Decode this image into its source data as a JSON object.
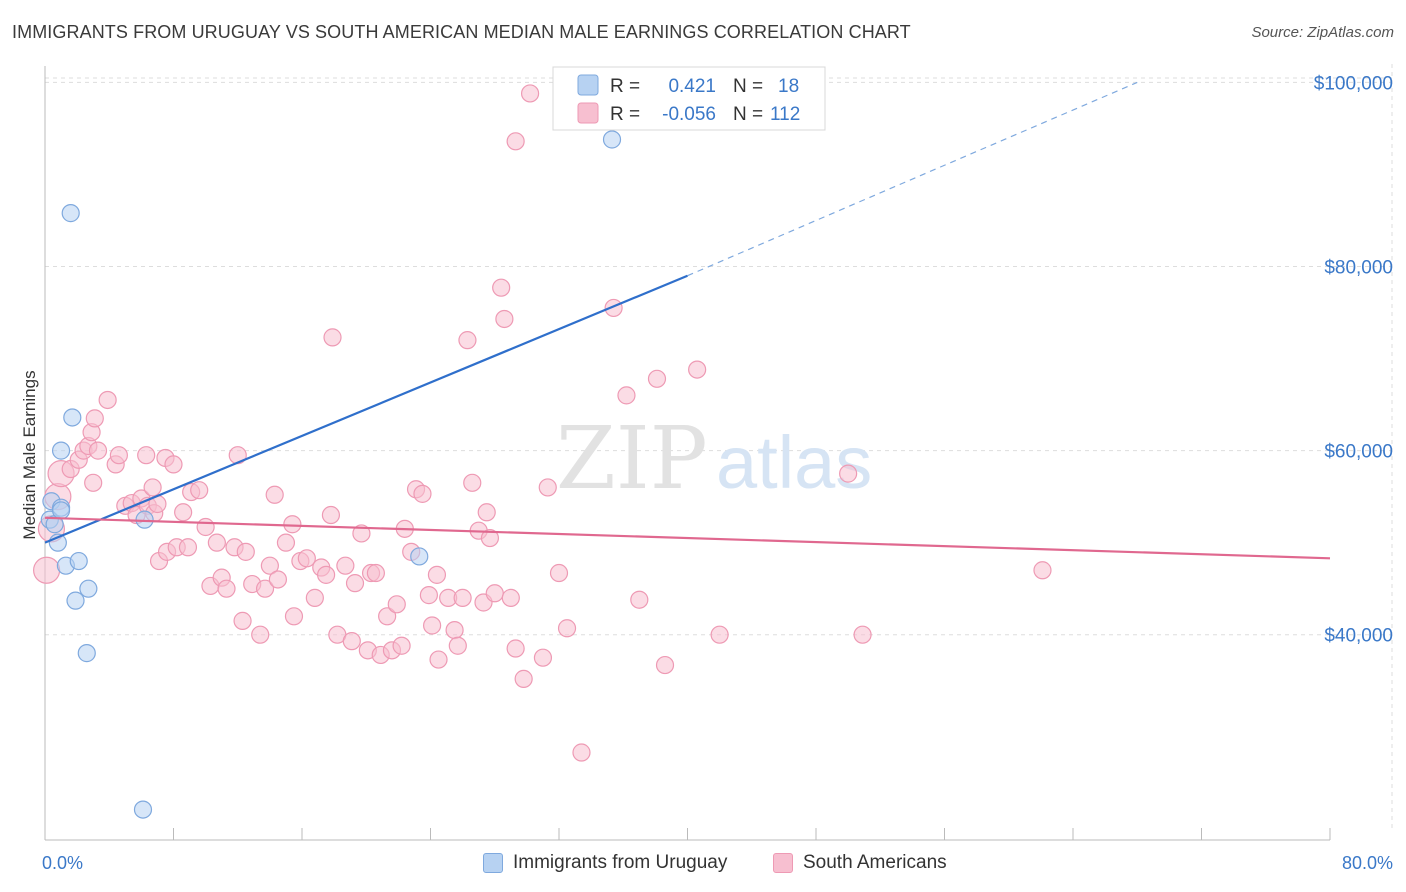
{
  "header": {
    "title": "IMMIGRANTS FROM URUGUAY VS SOUTH AMERICAN MEDIAN MALE EARNINGS CORRELATION CHART",
    "source": "Source: ZipAtlas.com"
  },
  "watermark": {
    "zip": "ZIP",
    "atlas": "atlas"
  },
  "colors": {
    "blue_fill": "#b7d2f2",
    "blue_stroke": "#7fa9de",
    "blue_line": "#2f6fcb",
    "pink_fill": "#f7bfd0",
    "pink_stroke": "#ee9ab4",
    "pink_line": "#e0688f",
    "grid": "#dddddd",
    "axis_text": "#3a78c8"
  },
  "legend": {
    "rows": [
      {
        "r_label": "R =",
        "r_value": "0.421",
        "n_label": "N =",
        "n_value": "18"
      },
      {
        "r_label": "R =",
        "r_value": "-0.056",
        "n_label": "N =",
        "n_value": "112"
      }
    ]
  },
  "bottom_legend": {
    "items": [
      {
        "label": "Immigrants from Uruguay"
      },
      {
        "label": "South Americans"
      }
    ]
  },
  "chart_data": {
    "type": "scatter",
    "title": "IMMIGRANTS FROM URUGUAY VS SOUTH AMERICAN MEDIAN MALE EARNINGS CORRELATION CHART",
    "xlabel": "",
    "ylabel": "Median Male Earnings",
    "xlim": [
      0,
      80
    ],
    "ylim": [
      19000,
      102000
    ],
    "x_tick_labels": [
      "0.0%",
      "80.0%"
    ],
    "y_ticks": [
      40000,
      60000,
      80000,
      100000
    ],
    "y_tick_labels": [
      "$40,000",
      "$60,000",
      "$80,000",
      "$100,000"
    ],
    "grid": true,
    "series": [
      {
        "name": "Immigrants from Uruguay",
        "points": [
          {
            "x": 0.3,
            "y": 52500
          },
          {
            "x": 0.4,
            "y": 54500
          },
          {
            "x": 0.6,
            "y": 52000
          },
          {
            "x": 0.8,
            "y": 50000
          },
          {
            "x": 1.0,
            "y": 53800
          },
          {
            "x": 1.0,
            "y": 60000
          },
          {
            "x": 1.3,
            "y": 47500
          },
          {
            "x": 1.6,
            "y": 85800
          },
          {
            "x": 1.7,
            "y": 63600
          },
          {
            "x": 1.9,
            "y": 43700
          },
          {
            "x": 2.1,
            "y": 48000
          },
          {
            "x": 2.6,
            "y": 38000
          },
          {
            "x": 2.7,
            "y": 45000
          },
          {
            "x": 6.1,
            "y": 21000
          },
          {
            "x": 6.2,
            "y": 52500
          },
          {
            "x": 23.3,
            "y": 48500
          },
          {
            "x": 35.3,
            "y": 93800
          },
          {
            "x": 1.0,
            "y": 53500
          }
        ],
        "trend": {
          "x0": 0,
          "y0": 50000,
          "x1": 40,
          "y1": 79000,
          "dashed_to_x": 68,
          "dashed_to_y": 100000
        }
      },
      {
        "name": "South Americans",
        "points": [
          {
            "x": 0.1,
            "y": 47000
          },
          {
            "x": 0.4,
            "y": 51500
          },
          {
            "x": 0.8,
            "y": 55000
          },
          {
            "x": 1.0,
            "y": 57500
          },
          {
            "x": 1.6,
            "y": 58000
          },
          {
            "x": 2.1,
            "y": 59000
          },
          {
            "x": 2.4,
            "y": 60000
          },
          {
            "x": 2.7,
            "y": 60500
          },
          {
            "x": 2.9,
            "y": 62000
          },
          {
            "x": 3.3,
            "y": 60000
          },
          {
            "x": 3.1,
            "y": 63500
          },
          {
            "x": 3.9,
            "y": 65500
          },
          {
            "x": 4.4,
            "y": 58500
          },
          {
            "x": 4.6,
            "y": 59500
          },
          {
            "x": 5.0,
            "y": 54000
          },
          {
            "x": 5.4,
            "y": 54300
          },
          {
            "x": 5.7,
            "y": 53000
          },
          {
            "x": 6.0,
            "y": 54800
          },
          {
            "x": 6.4,
            "y": 54000
          },
          {
            "x": 6.8,
            "y": 53200
          },
          {
            "x": 6.3,
            "y": 59500
          },
          {
            "x": 6.7,
            "y": 56000
          },
          {
            "x": 7.0,
            "y": 54200
          },
          {
            "x": 7.1,
            "y": 48000
          },
          {
            "x": 7.5,
            "y": 59200
          },
          {
            "x": 7.6,
            "y": 49000
          },
          {
            "x": 8.0,
            "y": 58500
          },
          {
            "x": 8.2,
            "y": 49500
          },
          {
            "x": 8.6,
            "y": 53300
          },
          {
            "x": 8.9,
            "y": 49500
          },
          {
            "x": 9.1,
            "y": 55500
          },
          {
            "x": 9.6,
            "y": 55700
          },
          {
            "x": 10.0,
            "y": 51700
          },
          {
            "x": 10.3,
            "y": 45300
          },
          {
            "x": 10.7,
            "y": 50000
          },
          {
            "x": 11.0,
            "y": 46200
          },
          {
            "x": 11.3,
            "y": 45000
          },
          {
            "x": 11.8,
            "y": 49500
          },
          {
            "x": 12.0,
            "y": 59500
          },
          {
            "x": 12.3,
            "y": 41500
          },
          {
            "x": 12.5,
            "y": 49000
          },
          {
            "x": 12.9,
            "y": 45500
          },
          {
            "x": 13.4,
            "y": 40000
          },
          {
            "x": 13.7,
            "y": 45000
          },
          {
            "x": 14.0,
            "y": 47500
          },
          {
            "x": 14.3,
            "y": 55200
          },
          {
            "x": 14.5,
            "y": 46000
          },
          {
            "x": 15.0,
            "y": 50000
          },
          {
            "x": 15.4,
            "y": 52000
          },
          {
            "x": 15.5,
            "y": 42000
          },
          {
            "x": 15.9,
            "y": 48000
          },
          {
            "x": 16.3,
            "y": 48300
          },
          {
            "x": 16.8,
            "y": 44000
          },
          {
            "x": 17.2,
            "y": 47300
          },
          {
            "x": 17.5,
            "y": 46500
          },
          {
            "x": 17.8,
            "y": 53000
          },
          {
            "x": 17.9,
            "y": 72300
          },
          {
            "x": 18.2,
            "y": 40000
          },
          {
            "x": 18.7,
            "y": 47500
          },
          {
            "x": 19.1,
            "y": 39300
          },
          {
            "x": 19.3,
            "y": 45600
          },
          {
            "x": 19.7,
            "y": 51000
          },
          {
            "x": 20.1,
            "y": 38300
          },
          {
            "x": 20.3,
            "y": 46700
          },
          {
            "x": 20.6,
            "y": 46700
          },
          {
            "x": 20.9,
            "y": 37800
          },
          {
            "x": 21.3,
            "y": 42000
          },
          {
            "x": 21.6,
            "y": 38300
          },
          {
            "x": 21.9,
            "y": 43300
          },
          {
            "x": 22.2,
            "y": 38800
          },
          {
            "x": 22.4,
            "y": 51500
          },
          {
            "x": 22.8,
            "y": 49000
          },
          {
            "x": 23.1,
            "y": 55800
          },
          {
            "x": 23.5,
            "y": 55300
          },
          {
            "x": 23.9,
            "y": 44300
          },
          {
            "x": 24.1,
            "y": 41000
          },
          {
            "x": 24.4,
            "y": 46500
          },
          {
            "x": 24.5,
            "y": 37300
          },
          {
            "x": 25.1,
            "y": 44000
          },
          {
            "x": 25.5,
            "y": 40500
          },
          {
            "x": 25.7,
            "y": 38800
          },
          {
            "x": 26.0,
            "y": 44000
          },
          {
            "x": 26.3,
            "y": 72000
          },
          {
            "x": 26.6,
            "y": 56500
          },
          {
            "x": 27.0,
            "y": 51300
          },
          {
            "x": 27.3,
            "y": 43500
          },
          {
            "x": 27.5,
            "y": 53300
          },
          {
            "x": 27.7,
            "y": 50500
          },
          {
            "x": 28.0,
            "y": 44500
          },
          {
            "x": 28.4,
            "y": 77700
          },
          {
            "x": 28.6,
            "y": 74300
          },
          {
            "x": 29.0,
            "y": 44000
          },
          {
            "x": 29.3,
            "y": 38500
          },
          {
            "x": 29.8,
            "y": 35200
          },
          {
            "x": 29.3,
            "y": 93600
          },
          {
            "x": 30.2,
            "y": 98800
          },
          {
            "x": 31.0,
            "y": 37500
          },
          {
            "x": 31.3,
            "y": 56000
          },
          {
            "x": 32.0,
            "y": 46700
          },
          {
            "x": 32.5,
            "y": 40700
          },
          {
            "x": 33.4,
            "y": 27200
          },
          {
            "x": 35.4,
            "y": 75500
          },
          {
            "x": 36.2,
            "y": 66000
          },
          {
            "x": 37.0,
            "y": 43800
          },
          {
            "x": 38.1,
            "y": 67800
          },
          {
            "x": 38.6,
            "y": 36700
          },
          {
            "x": 40.6,
            "y": 68800
          },
          {
            "x": 42.0,
            "y": 40000
          },
          {
            "x": 50.0,
            "y": 57500
          },
          {
            "x": 50.9,
            "y": 40000
          },
          {
            "x": 62.1,
            "y": 47000
          },
          {
            "x": 3.0,
            "y": 56500
          }
        ],
        "trend": {
          "x0": 0,
          "y0": 52700,
          "x1": 80,
          "y1": 48300
        }
      }
    ]
  }
}
